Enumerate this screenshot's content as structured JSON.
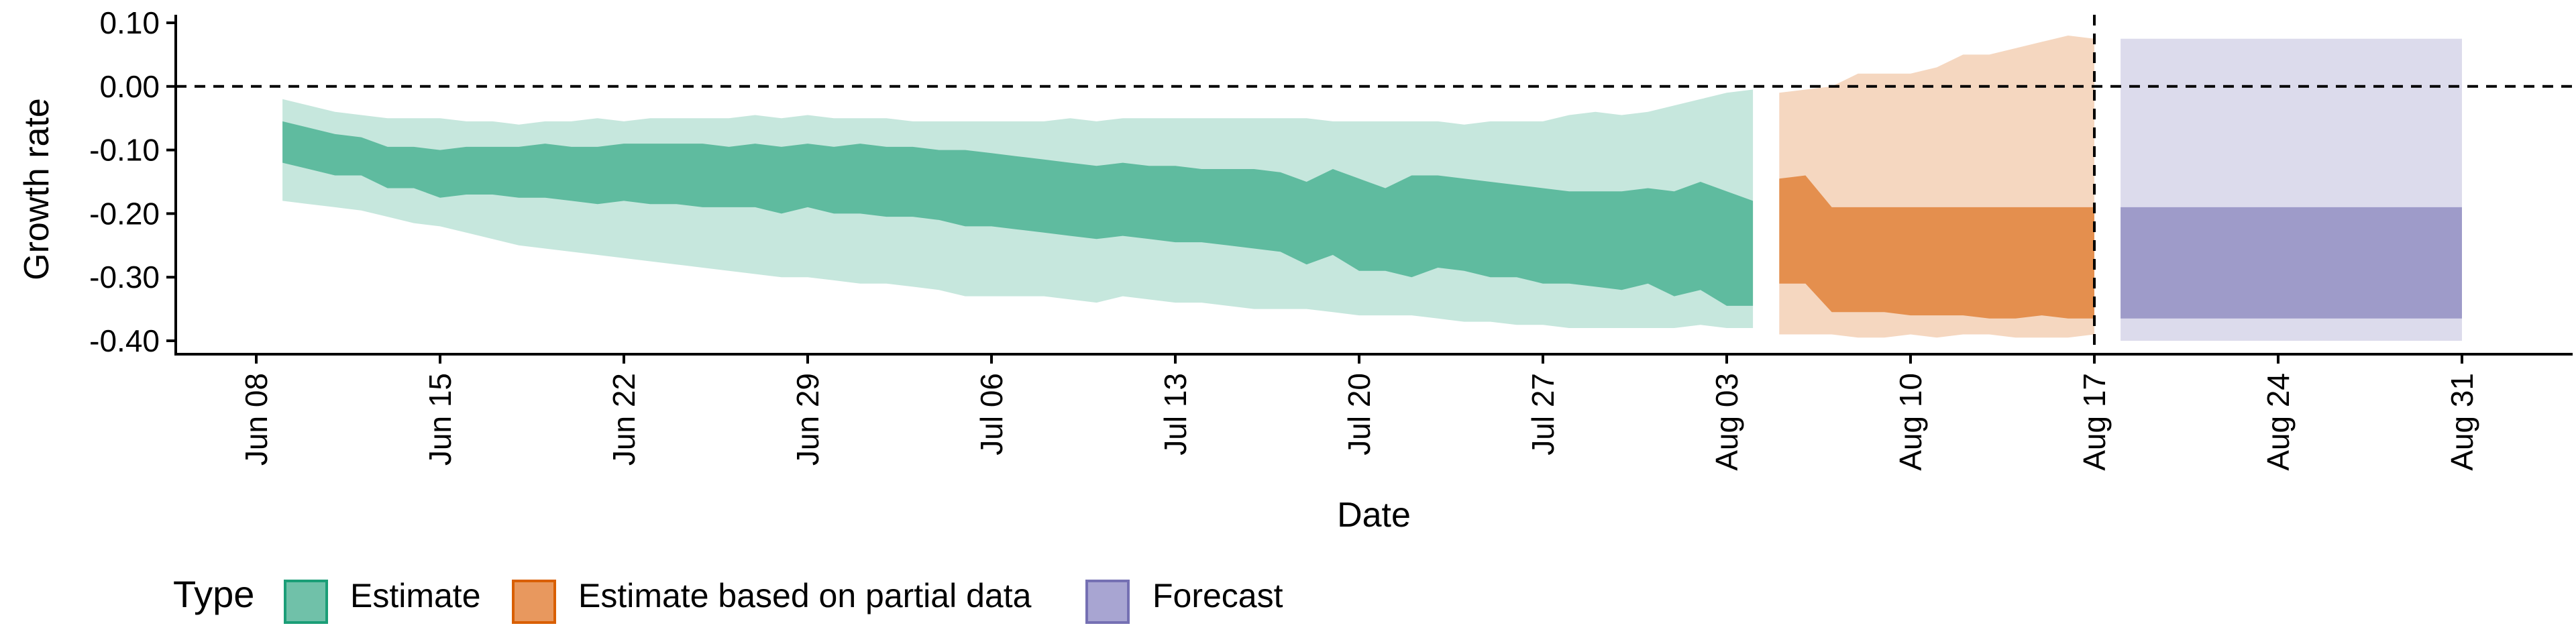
{
  "chart_data": {
    "type": "area",
    "xlabel": "Date",
    "ylabel": "Growth rate",
    "ylim": [
      -0.42,
      0.1
    ],
    "y_ticks": [
      0.1,
      0.0,
      -0.1,
      -0.2,
      -0.3,
      -0.4
    ],
    "y_tick_labels": [
      "0.10",
      "0.00",
      "-0.10",
      "-0.20",
      "-0.30",
      "-0.40"
    ],
    "x_range": [
      "2020-06-07",
      "2020-09-02"
    ],
    "x_ticks": [
      "2020-06-08",
      "2020-06-15",
      "2020-06-22",
      "2020-06-29",
      "2020-07-06",
      "2020-07-13",
      "2020-07-20",
      "2020-07-27",
      "2020-08-03",
      "2020-08-10",
      "2020-08-17",
      "2020-08-24",
      "2020-08-31"
    ],
    "x_tick_labels": [
      "Jun 08",
      "Jun 15",
      "Jun 22",
      "Jun 29",
      "Jul 06",
      "Jul 13",
      "Jul 20",
      "Jul 27",
      "Aug 03",
      "Aug 10",
      "Aug 17",
      "Aug 24",
      "Aug 31"
    ],
    "reference_lines": {
      "horizontal_y": 0.0,
      "vertical_x": "2020-08-17",
      "style": "dashed"
    },
    "legend": {
      "title": "Type",
      "position": "bottom-left",
      "entries": [
        {
          "label": "Estimate",
          "color": "#70c1a9",
          "border": "#1b9e77"
        },
        {
          "label": "Estimate based on partial data",
          "color": "#e8985e",
          "border": "#d95f02"
        },
        {
          "label": "Forecast",
          "color": "#a8a5d2",
          "border": "#7570b3"
        }
      ]
    },
    "series": [
      {
        "name": "Estimate",
        "color": "#1b9e77",
        "x": [
          "2020-06-09",
          "2020-06-10",
          "2020-06-11",
          "2020-06-12",
          "2020-06-13",
          "2020-06-14",
          "2020-06-15",
          "2020-06-16",
          "2020-06-17",
          "2020-06-18",
          "2020-06-19",
          "2020-06-20",
          "2020-06-21",
          "2020-06-22",
          "2020-06-23",
          "2020-06-24",
          "2020-06-25",
          "2020-06-26",
          "2020-06-27",
          "2020-06-28",
          "2020-06-29",
          "2020-06-30",
          "2020-07-01",
          "2020-07-02",
          "2020-07-03",
          "2020-07-04",
          "2020-07-05",
          "2020-07-06",
          "2020-07-07",
          "2020-07-08",
          "2020-07-09",
          "2020-07-10",
          "2020-07-11",
          "2020-07-12",
          "2020-07-13",
          "2020-07-14",
          "2020-07-15",
          "2020-07-16",
          "2020-07-17",
          "2020-07-18",
          "2020-07-19",
          "2020-07-20",
          "2020-07-21",
          "2020-07-22",
          "2020-07-23",
          "2020-07-24",
          "2020-07-25",
          "2020-07-26",
          "2020-07-27",
          "2020-07-28",
          "2020-07-29",
          "2020-07-30",
          "2020-07-31",
          "2020-08-01",
          "2020-08-02",
          "2020-08-03",
          "2020-08-04"
        ],
        "lower_90": [
          -0.18,
          -0.185,
          -0.19,
          -0.195,
          -0.205,
          -0.215,
          -0.22,
          -0.23,
          -0.24,
          -0.25,
          -0.255,
          -0.26,
          -0.265,
          -0.27,
          -0.275,
          -0.28,
          -0.285,
          -0.29,
          -0.295,
          -0.3,
          -0.3,
          -0.305,
          -0.31,
          -0.31,
          -0.315,
          -0.32,
          -0.33,
          -0.33,
          -0.33,
          -0.33,
          -0.335,
          -0.34,
          -0.33,
          -0.335,
          -0.34,
          -0.34,
          -0.345,
          -0.35,
          -0.35,
          -0.35,
          -0.355,
          -0.36,
          -0.36,
          -0.36,
          -0.365,
          -0.37,
          -0.37,
          -0.375,
          -0.375,
          -0.38,
          -0.38,
          -0.38,
          -0.38,
          -0.38,
          -0.375,
          -0.38,
          -0.38
        ],
        "upper_90": [
          -0.02,
          -0.03,
          -0.04,
          -0.045,
          -0.05,
          -0.05,
          -0.05,
          -0.055,
          -0.055,
          -0.06,
          -0.055,
          -0.055,
          -0.05,
          -0.055,
          -0.05,
          -0.05,
          -0.05,
          -0.05,
          -0.045,
          -0.05,
          -0.045,
          -0.05,
          -0.05,
          -0.05,
          -0.055,
          -0.055,
          -0.055,
          -0.055,
          -0.055,
          -0.055,
          -0.05,
          -0.055,
          -0.05,
          -0.05,
          -0.05,
          -0.05,
          -0.05,
          -0.05,
          -0.05,
          -0.05,
          -0.055,
          -0.055,
          -0.055,
          -0.055,
          -0.055,
          -0.06,
          -0.055,
          -0.055,
          -0.055,
          -0.045,
          -0.04,
          -0.045,
          -0.04,
          -0.03,
          -0.02,
          -0.01,
          -0.005
        ],
        "lower_50": [
          -0.12,
          -0.13,
          -0.14,
          -0.14,
          -0.16,
          -0.16,
          -0.175,
          -0.17,
          -0.17,
          -0.175,
          -0.175,
          -0.18,
          -0.185,
          -0.18,
          -0.185,
          -0.185,
          -0.19,
          -0.19,
          -0.19,
          -0.2,
          -0.19,
          -0.2,
          -0.2,
          -0.205,
          -0.205,
          -0.21,
          -0.22,
          -0.22,
          -0.225,
          -0.23,
          -0.235,
          -0.24,
          -0.235,
          -0.24,
          -0.245,
          -0.245,
          -0.25,
          -0.255,
          -0.26,
          -0.28,
          -0.265,
          -0.29,
          -0.29,
          -0.3,
          -0.285,
          -0.29,
          -0.3,
          -0.3,
          -0.31,
          -0.31,
          -0.315,
          -0.32,
          -0.31,
          -0.33,
          -0.32,
          -0.345,
          -0.345
        ],
        "upper_50": [
          -0.055,
          -0.065,
          -0.075,
          -0.08,
          -0.095,
          -0.095,
          -0.1,
          -0.095,
          -0.095,
          -0.095,
          -0.09,
          -0.095,
          -0.095,
          -0.09,
          -0.09,
          -0.09,
          -0.09,
          -0.095,
          -0.09,
          -0.095,
          -0.09,
          -0.095,
          -0.09,
          -0.095,
          -0.095,
          -0.1,
          -0.1,
          -0.105,
          -0.11,
          -0.115,
          -0.12,
          -0.125,
          -0.12,
          -0.125,
          -0.125,
          -0.13,
          -0.13,
          -0.13,
          -0.135,
          -0.15,
          -0.13,
          -0.145,
          -0.16,
          -0.14,
          -0.14,
          -0.145,
          -0.15,
          -0.155,
          -0.16,
          -0.165,
          -0.165,
          -0.165,
          -0.16,
          -0.165,
          -0.15,
          -0.165,
          -0.18
        ]
      },
      {
        "name": "Estimate based on partial data",
        "color": "#d95f02",
        "x": [
          "2020-08-05",
          "2020-08-06",
          "2020-08-07",
          "2020-08-08",
          "2020-08-09",
          "2020-08-10",
          "2020-08-11",
          "2020-08-12",
          "2020-08-13",
          "2020-08-14",
          "2020-08-15",
          "2020-08-16",
          "2020-08-17"
        ],
        "lower_90": [
          -0.39,
          -0.39,
          -0.39,
          -0.395,
          -0.395,
          -0.39,
          -0.395,
          -0.39,
          -0.39,
          -0.395,
          -0.395,
          -0.395,
          -0.39
        ],
        "upper_90": [
          -0.01,
          -0.005,
          0.0,
          0.02,
          0.02,
          0.02,
          0.03,
          0.05,
          0.05,
          0.06,
          0.07,
          0.08,
          0.075
        ],
        "lower_50": [
          -0.31,
          -0.31,
          -0.355,
          -0.355,
          -0.355,
          -0.36,
          -0.36,
          -0.36,
          -0.365,
          -0.365,
          -0.36,
          -0.365,
          -0.365
        ],
        "upper_50": [
          -0.145,
          -0.14,
          -0.19,
          -0.19,
          -0.19,
          -0.19,
          -0.19,
          -0.19,
          -0.19,
          -0.19,
          -0.19,
          -0.19,
          -0.19
        ]
      },
      {
        "name": "Forecast",
        "color": "#7570b3",
        "x": [
          "2020-08-18",
          "2020-08-31"
        ],
        "lower_90": [
          -0.4,
          -0.4
        ],
        "upper_90": [
          0.075,
          0.075
        ],
        "lower_50": [
          -0.365,
          -0.365
        ],
        "upper_50": [
          -0.19,
          -0.19
        ]
      }
    ]
  }
}
